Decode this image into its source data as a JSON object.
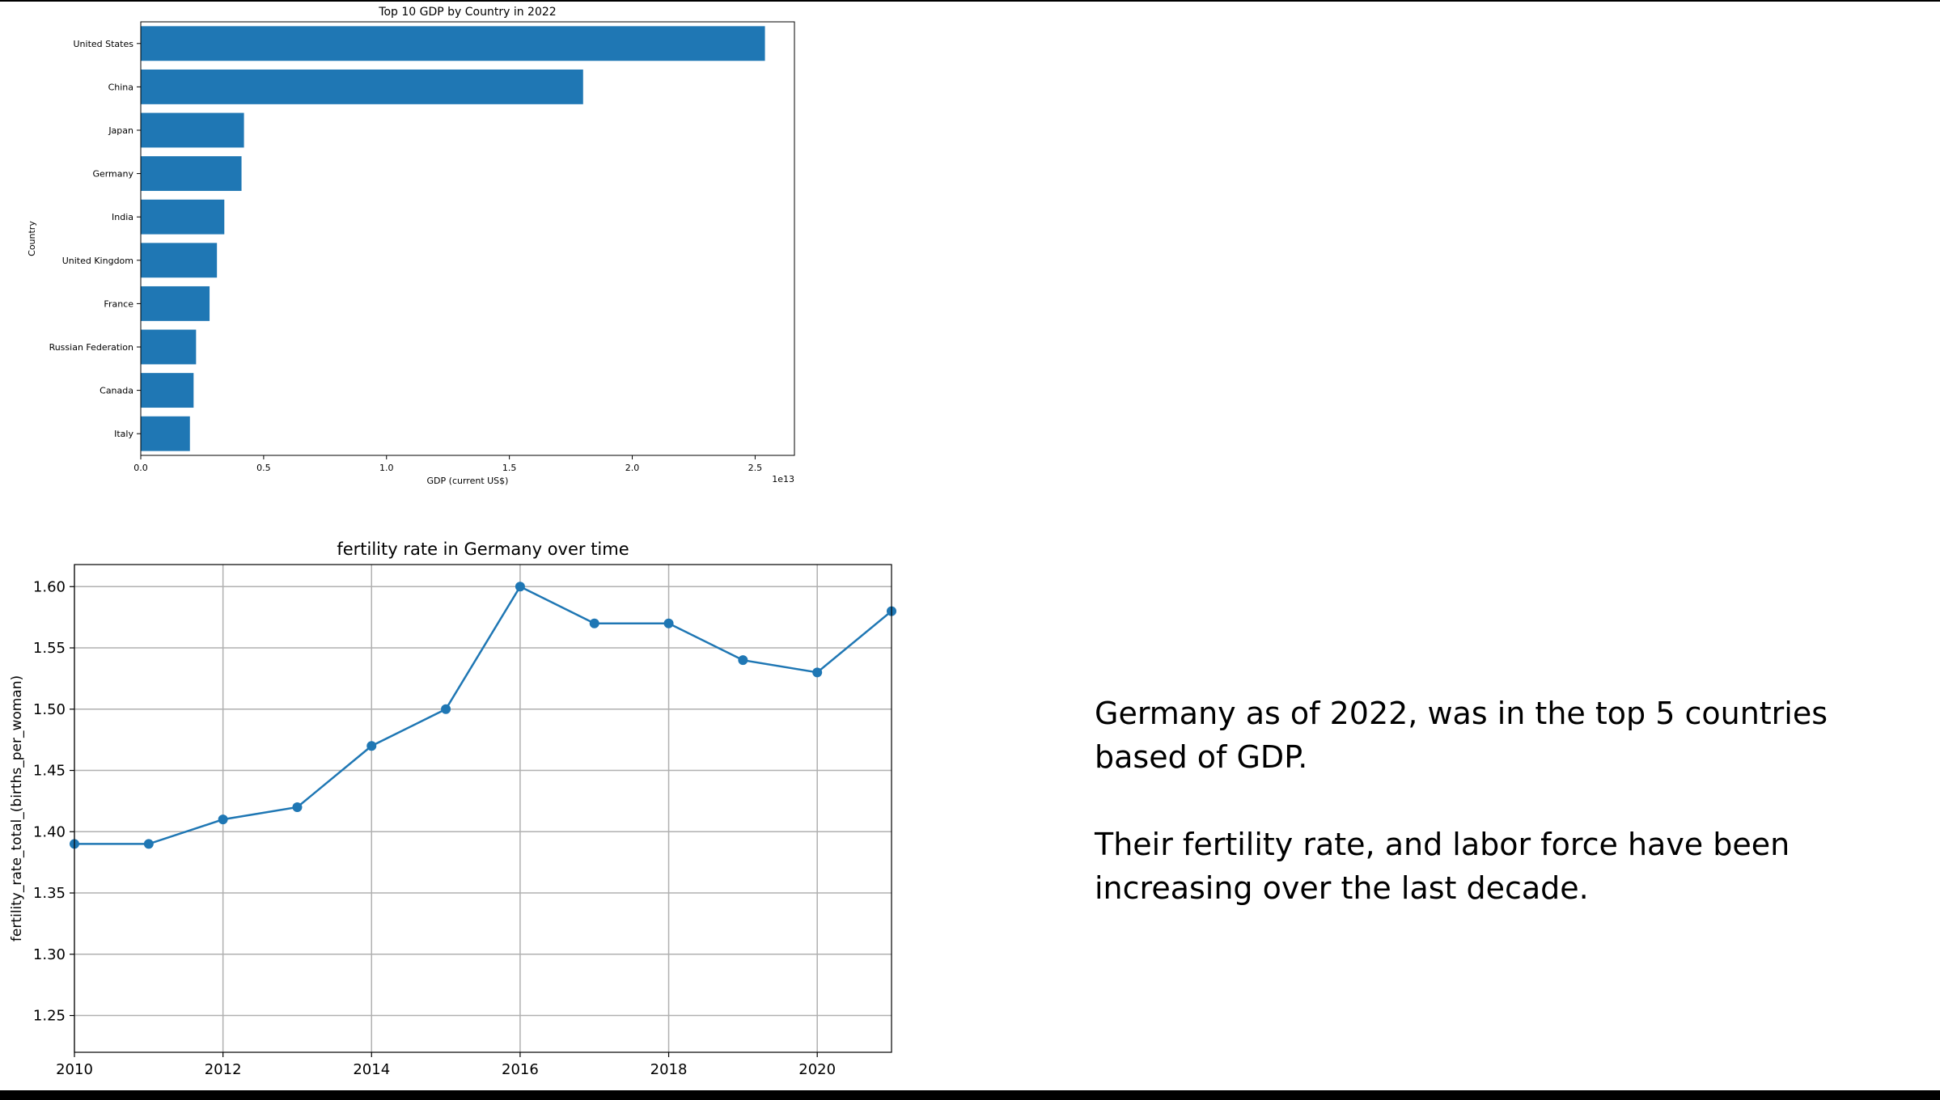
{
  "chart_data": [
    {
      "type": "bar",
      "orientation": "horizontal",
      "title": "Top 10 GDP by Country in 2022",
      "xlabel": "GDP (current US$)",
      "ylabel": "Country",
      "x_offset_label": "1e13",
      "categories": [
        "United States",
        "China",
        "Japan",
        "Germany",
        "India",
        "United Kingdom",
        "France",
        "Russian Federation",
        "Canada",
        "Italy"
      ],
      "values": [
        2.54,
        1.8,
        0.42,
        0.41,
        0.34,
        0.31,
        0.28,
        0.225,
        0.215,
        0.2
      ],
      "xlim": [
        0,
        2.66
      ],
      "xticks": [
        "0.0",
        "0.5",
        "1.0",
        "1.5",
        "2.0",
        "2.5"
      ],
      "grid": false,
      "color": "#1f77b4"
    },
    {
      "type": "line",
      "title": "fertility rate in Germany over time",
      "xlabel": "",
      "ylabel": "fertility_rate_total_(births_per_woman)",
      "x": [
        2010,
        2011,
        2012,
        2013,
        2014,
        2015,
        2016,
        2017,
        2018,
        2019,
        2020,
        2021
      ],
      "values": [
        1.39,
        1.39,
        1.41,
        1.42,
        1.47,
        1.5,
        1.6,
        1.57,
        1.57,
        1.54,
        1.53,
        1.58
      ],
      "xlim": [
        2010,
        2021
      ],
      "ylim": [
        1.22,
        1.618
      ],
      "xticks": [
        "2010",
        "2012",
        "2014",
        "2016",
        "2018",
        "2020"
      ],
      "yticks": [
        "1.25",
        "1.30",
        "1.35",
        "1.40",
        "1.45",
        "1.50",
        "1.55",
        "1.60"
      ],
      "grid": true,
      "markers": true,
      "color": "#1f77b4"
    }
  ],
  "text_block": {
    "para1": "Germany as of 2022, was in the top 5 countries based of GDP.",
    "para2": "Their fertility rate, and labor force have been increasing over the last decade."
  }
}
